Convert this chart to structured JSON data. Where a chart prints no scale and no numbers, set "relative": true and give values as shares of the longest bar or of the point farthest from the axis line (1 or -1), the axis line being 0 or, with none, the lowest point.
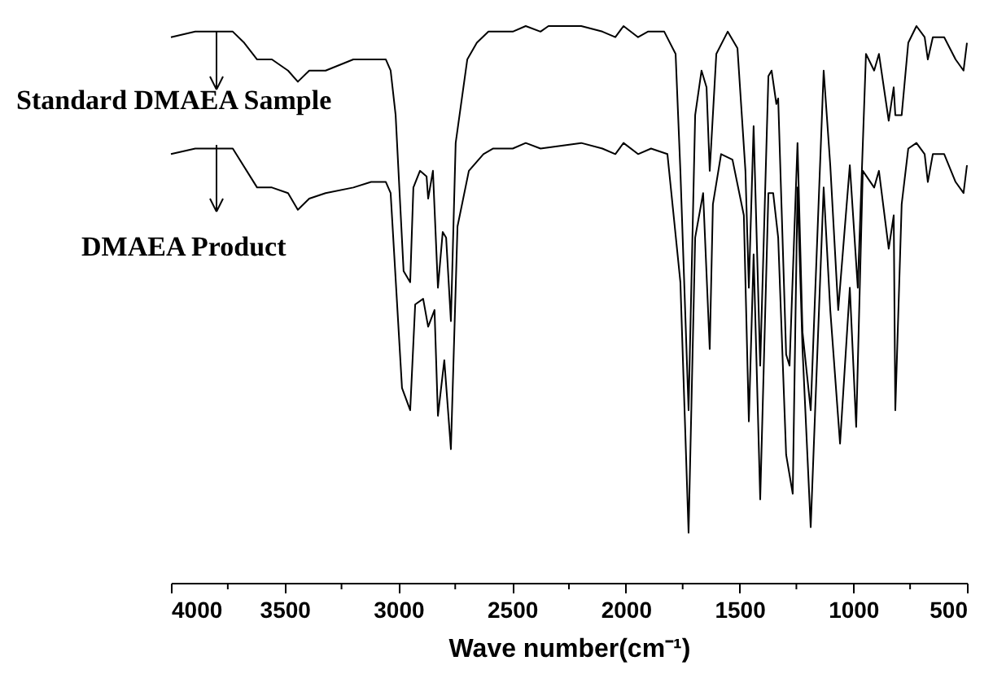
{
  "chart_data": {
    "type": "line",
    "relative": true,
    "xlabel": "Wave number(cm⁻¹)",
    "xlim": [
      4000,
      500
    ],
    "xticks": [
      4000,
      {
        "value": 3750,
        "label": null
      },
      3500,
      {
        "value": 3250,
        "label": null
      },
      3000,
      {
        "value": 2750,
        "label": null
      },
      2500,
      {
        "value": 2250,
        "label": null
      },
      2000,
      {
        "value": 1750,
        "label": null
      },
      1500,
      {
        "value": 1250,
        "label": null
      },
      1000,
      {
        "value": 750,
        "label": null
      },
      500
    ],
    "legend": "top left",
    "grid": false,
    "marker": "none",
    "line_style": "solid",
    "series": [
      {
        "name": "Standard DMAEA Sample",
        "color": "#000000",
        "x": [
          4000,
          3893,
          3728,
          3678,
          3621,
          3556,
          3485,
          3442,
          3392,
          3320,
          3198,
          3120,
          3084,
          3055,
          3034,
          3012,
          2977,
          2948,
          2934,
          2905,
          2876,
          2869,
          2848,
          2826,
          2805,
          2790,
          2769,
          2748,
          2697,
          2655,
          2604,
          2583,
          2497,
          2440,
          2375,
          2340,
          2196,
          2103,
          2046,
          2010,
          1946,
          1903,
          1831,
          1781,
          1760,
          1724,
          1695,
          1667,
          1645,
          1631,
          1624,
          1602,
          1552,
          1509,
          1474,
          1459,
          1438,
          1409,
          1373,
          1359,
          1338,
          1330,
          1295,
          1280,
          1245,
          1223,
          1187,
          1130,
          1101,
          1066,
          1015,
          980,
          944,
          908,
          887,
          844,
          822,
          815,
          787,
          758,
          722,
          686,
          672,
          650,
          600,
          550,
          515,
          500
        ],
        "values": [
          0.98,
          0.99,
          0.99,
          0.97,
          0.94,
          0.94,
          0.92,
          0.9,
          0.92,
          0.92,
          0.94,
          0.94,
          0.94,
          0.94,
          0.92,
          0.84,
          0.56,
          0.54,
          0.71,
          0.74,
          0.73,
          0.69,
          0.74,
          0.53,
          0.63,
          0.62,
          0.47,
          0.79,
          0.94,
          0.97,
          0.99,
          0.99,
          0.99,
          1.0,
          0.99,
          1.0,
          1.0,
          0.99,
          0.98,
          1.0,
          0.98,
          0.99,
          0.99,
          0.95,
          0.74,
          0.31,
          0.84,
          0.92,
          0.89,
          0.74,
          0.79,
          0.95,
          0.99,
          0.96,
          0.74,
          0.53,
          0.82,
          0.39,
          0.91,
          0.92,
          0.86,
          0.87,
          0.41,
          0.39,
          0.79,
          0.45,
          0.31,
          0.92,
          0.75,
          0.49,
          0.75,
          0.53,
          0.95,
          0.92,
          0.95,
          0.83,
          0.89,
          0.84,
          0.84,
          0.97,
          1.0,
          0.98,
          0.94,
          0.98,
          0.98,
          0.94,
          0.92,
          0.97
        ]
      },
      {
        "name": "DMAEA Product",
        "color": "#000000",
        "x": [
          4000,
          3893,
          3728,
          3621,
          3556,
          3485,
          3442,
          3392,
          3320,
          3198,
          3120,
          3055,
          3034,
          2984,
          2948,
          2926,
          2891,
          2869,
          2841,
          2826,
          2798,
          2769,
          2740,
          2690,
          2626,
          2583,
          2497,
          2440,
          2375,
          2196,
          2103,
          2046,
          2010,
          1946,
          1889,
          1817,
          1760,
          1724,
          1695,
          1660,
          1631,
          1617,
          1581,
          1531,
          1481,
          1459,
          1438,
          1409,
          1373,
          1352,
          1330,
          1295,
          1266,
          1245,
          1223,
          1187,
          1130,
          1101,
          1058,
          1015,
          987,
          958,
          908,
          887,
          844,
          822,
          815,
          787,
          758,
          722,
          686,
          672,
          650,
          600,
          550,
          515,
          500
        ],
        "values": [
          0.77,
          0.78,
          0.78,
          0.71,
          0.71,
          0.7,
          0.67,
          0.69,
          0.7,
          0.71,
          0.72,
          0.72,
          0.7,
          0.35,
          0.31,
          0.5,
          0.51,
          0.46,
          0.49,
          0.3,
          0.4,
          0.24,
          0.64,
          0.74,
          0.77,
          0.78,
          0.78,
          0.79,
          0.78,
          0.79,
          0.78,
          0.77,
          0.79,
          0.77,
          0.78,
          0.77,
          0.54,
          0.09,
          0.62,
          0.7,
          0.42,
          0.68,
          0.77,
          0.76,
          0.66,
          0.29,
          0.59,
          0.15,
          0.7,
          0.7,
          0.62,
          0.23,
          0.16,
          0.71,
          0.42,
          0.1,
          0.71,
          0.49,
          0.25,
          0.53,
          0.28,
          0.74,
          0.71,
          0.74,
          0.6,
          0.66,
          0.31,
          0.68,
          0.78,
          0.79,
          0.77,
          0.72,
          0.77,
          0.77,
          0.72,
          0.7,
          0.75
        ]
      }
    ]
  }
}
